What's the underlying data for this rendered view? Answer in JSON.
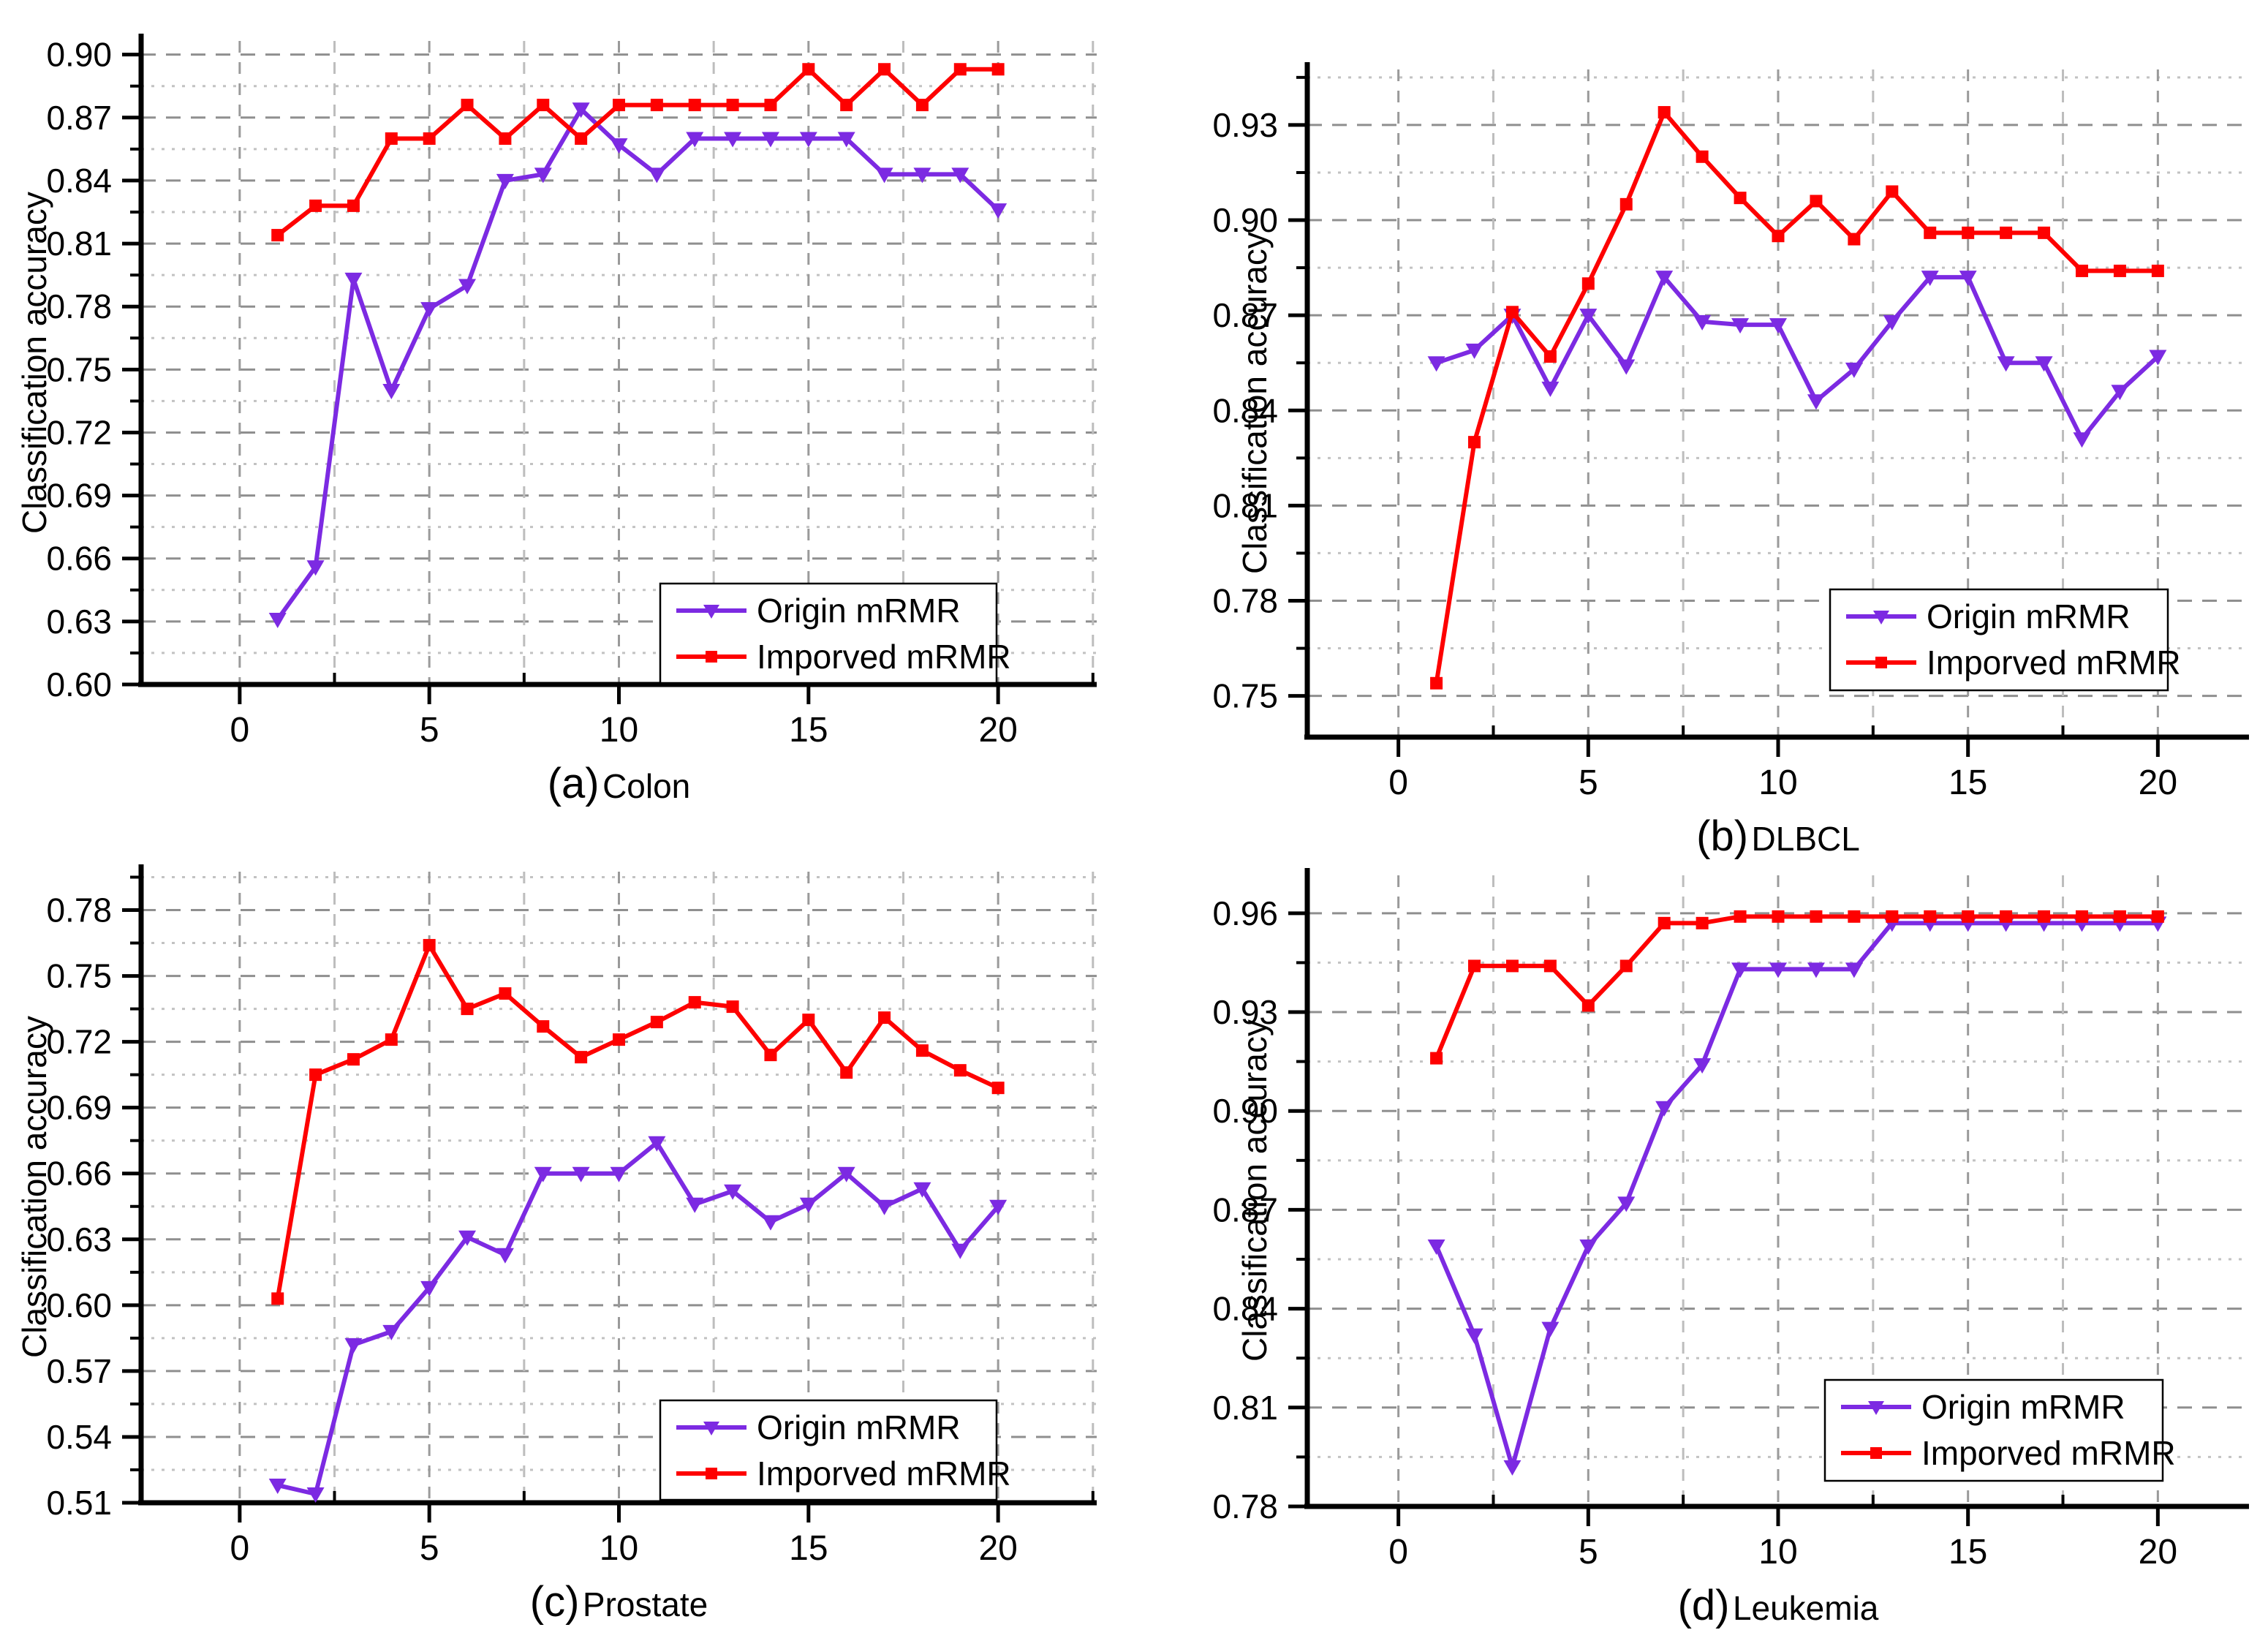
{
  "figure": {
    "background": "#ffffff",
    "axis_color": "#000000",
    "grid_major_color": "#8f8f8f",
    "grid_minor_color": "#c2c2c2",
    "origin_series_color": "#7c2ae2",
    "improved_series_color": "#fe0000"
  },
  "chart_data": [
    {
      "type": "line",
      "panel": "a",
      "caption_prefix": "(a)",
      "caption": "Colon",
      "ylabel": "Classification accuracy",
      "xlim": [
        -2.6,
        22.6
      ],
      "ylim": [
        0.6,
        0.9065
      ],
      "xticks": [
        0,
        5,
        10,
        15,
        20
      ],
      "xtick_labels": [
        "0",
        "5",
        "10",
        "15",
        "20"
      ],
      "yticks": [
        0.6,
        0.63,
        0.66,
        0.69,
        0.72,
        0.75,
        0.78,
        0.81,
        0.84,
        0.87,
        0.9
      ],
      "ytick_labels": [
        "0.60",
        "0.63",
        "0.66",
        "0.69",
        "0.72",
        "0.75",
        "0.78",
        "0.81",
        "0.84",
        "0.87",
        "0.90"
      ],
      "grid": true,
      "legend_position": "bottom-right",
      "x": [
        1,
        2,
        3,
        4,
        5,
        6,
        7,
        8,
        9,
        10,
        11,
        12,
        13,
        14,
        15,
        16,
        17,
        18,
        19,
        20
      ],
      "series": [
        {
          "name": "Origin mRMR",
          "color": "#7c2ae2",
          "marker": "triangle-down",
          "values": [
            0.631,
            0.656,
            0.793,
            0.74,
            0.779,
            0.79,
            0.84,
            0.843,
            0.874,
            0.857,
            0.843,
            0.86,
            0.86,
            0.86,
            0.86,
            0.86,
            0.843,
            0.843,
            0.843,
            0.826
          ]
        },
        {
          "name": "Imporved mRMR",
          "color": "#fe0000",
          "marker": "square",
          "values": [
            0.814,
            0.828,
            0.828,
            0.86,
            0.86,
            0.876,
            0.86,
            0.876,
            0.86,
            0.876,
            0.876,
            0.876,
            0.876,
            0.876,
            0.893,
            0.876,
            0.893,
            0.876,
            0.893,
            0.893
          ]
        }
      ]
    },
    {
      "type": "line",
      "panel": "b",
      "caption_prefix": "(b)",
      "caption": "DLBCL",
      "ylabel": "Classification accuracy",
      "xlim": [
        -2.4,
        22.4
      ],
      "ylim": [
        0.737,
        0.9475
      ],
      "xticks": [
        0,
        5,
        10,
        15,
        20
      ],
      "xtick_labels": [
        "0",
        "5",
        "10",
        "15",
        "20"
      ],
      "yticks": [
        0.75,
        0.78,
        0.81,
        0.84,
        0.87,
        0.9,
        0.93
      ],
      "ytick_labels": [
        "0.75",
        "0.78",
        "0.81",
        "0.84",
        "0.87",
        "0.90",
        "0.93"
      ],
      "grid": true,
      "legend_position": "bottom-right",
      "x": [
        1,
        2,
        3,
        4,
        5,
        6,
        7,
        8,
        9,
        10,
        11,
        12,
        13,
        14,
        15,
        16,
        17,
        18,
        19,
        20
      ],
      "series": [
        {
          "name": "Origin mRMR",
          "color": "#7c2ae2",
          "marker": "triangle-down",
          "values": [
            0.855,
            0.859,
            0.87,
            0.847,
            0.87,
            0.854,
            0.882,
            0.868,
            0.867,
            0.867,
            0.843,
            0.853,
            0.868,
            0.882,
            0.882,
            0.855,
            0.855,
            0.831,
            0.846,
            0.857
          ]
        },
        {
          "name": "Imporved mRMR",
          "color": "#fe0000",
          "marker": "square",
          "values": [
            0.754,
            0.83,
            0.871,
            0.857,
            0.88,
            0.905,
            0.934,
            0.92,
            0.907,
            0.895,
            0.906,
            0.894,
            0.909,
            0.896,
            0.896,
            0.896,
            0.896,
            0.884,
            0.884,
            0.884
          ]
        }
      ]
    },
    {
      "type": "line",
      "panel": "c",
      "caption_prefix": "(c)",
      "caption": "Prostate",
      "ylabel": "Classification accuracy",
      "xlim": [
        -2.6,
        22.6
      ],
      "ylim": [
        0.51,
        0.7975
      ],
      "xticks": [
        0,
        5,
        10,
        15,
        20
      ],
      "xtick_labels": [
        "0",
        "5",
        "10",
        "15",
        "20"
      ],
      "yticks": [
        0.51,
        0.54,
        0.57,
        0.6,
        0.63,
        0.66,
        0.69,
        0.72,
        0.75,
        0.78
      ],
      "ytick_labels": [
        "0.51",
        "0.54",
        "0.57",
        "0.60",
        "0.63",
        "0.66",
        "0.69",
        "0.72",
        "0.75",
        "0.78"
      ],
      "grid": true,
      "legend_position": "bottom-right",
      "x": [
        1,
        2,
        3,
        4,
        5,
        6,
        7,
        8,
        9,
        10,
        11,
        12,
        13,
        14,
        15,
        16,
        17,
        18,
        19,
        20
      ],
      "series": [
        {
          "name": "Origin mRMR",
          "color": "#7c2ae2",
          "marker": "triangle-down",
          "values": [
            0.518,
            0.514,
            0.582,
            0.588,
            0.608,
            0.631,
            0.623,
            0.66,
            0.66,
            0.66,
            0.674,
            0.646,
            0.652,
            0.638,
            0.646,
            0.66,
            0.645,
            0.653,
            0.625,
            0.645
          ]
        },
        {
          "name": "Imporved mRMR",
          "color": "#fe0000",
          "marker": "square",
          "values": [
            0.603,
            0.705,
            0.712,
            0.721,
            0.764,
            0.735,
            0.742,
            0.727,
            0.713,
            0.721,
            0.729,
            0.738,
            0.736,
            0.714,
            0.73,
            0.706,
            0.731,
            0.716,
            0.707,
            0.699
          ]
        }
      ]
    },
    {
      "type": "line",
      "panel": "d",
      "caption_prefix": "(d)",
      "caption": "Leukemia",
      "ylabel": "Classification accuracy",
      "xlim": [
        -2.4,
        22.4
      ],
      "ylim": [
        0.78,
        0.9715
      ],
      "xticks": [
        0,
        5,
        10,
        15,
        20
      ],
      "xtick_labels": [
        "0",
        "5",
        "10",
        "15",
        "20"
      ],
      "yticks": [
        0.78,
        0.81,
        0.84,
        0.87,
        0.9,
        0.93,
        0.96
      ],
      "ytick_labels": [
        "0.78",
        "0.81",
        "0.84",
        "0.87",
        "0.90",
        "0.93",
        "0.96"
      ],
      "grid": true,
      "legend_position": "bottom-right",
      "x": [
        1,
        2,
        3,
        4,
        5,
        6,
        7,
        8,
        9,
        10,
        11,
        12,
        13,
        14,
        15,
        16,
        17,
        18,
        19,
        20
      ],
      "series": [
        {
          "name": "Origin mRMR",
          "color": "#7c2ae2",
          "marker": "triangle-down",
          "values": [
            0.859,
            0.832,
            0.792,
            0.834,
            0.859,
            0.872,
            0.901,
            0.914,
            0.943,
            0.943,
            0.943,
            0.943,
            0.957,
            0.957,
            0.957,
            0.957,
            0.957,
            0.957,
            0.957,
            0.957
          ]
        },
        {
          "name": "Imporved mRMR",
          "color": "#fe0000",
          "marker": "square",
          "values": [
            0.916,
            0.944,
            0.944,
            0.944,
            0.932,
            0.944,
            0.957,
            0.957,
            0.959,
            0.959,
            0.959,
            0.959,
            0.959,
            0.959,
            0.959,
            0.959,
            0.959,
            0.959,
            0.959,
            0.959
          ]
        }
      ]
    }
  ]
}
